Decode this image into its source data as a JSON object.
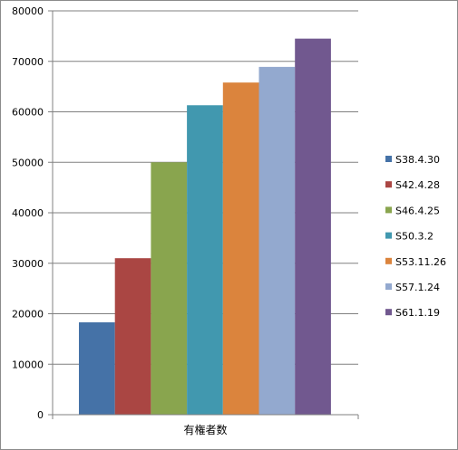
{
  "chart_data": {
    "type": "bar",
    "categories": [
      "有権者数"
    ],
    "series": [
      {
        "name": "S38.4.30",
        "values": [
          18300
        ],
        "color": "#4572A7"
      },
      {
        "name": "S42.4.28",
        "values": [
          31000
        ],
        "color": "#AA4643"
      },
      {
        "name": "S46.4.25",
        "values": [
          50000
        ],
        "color": "#89A54E"
      },
      {
        "name": "S50.3.2",
        "values": [
          61300
        ],
        "color": "#4198AF"
      },
      {
        "name": "S53.11.26",
        "values": [
          65800
        ],
        "color": "#DB843D"
      },
      {
        "name": "S57.1.24",
        "values": [
          68900
        ],
        "color": "#93A9CF"
      },
      {
        "name": "S61.1.19",
        "values": [
          74500
        ],
        "color": "#71588F"
      }
    ],
    "ylim": [
      0,
      80000
    ],
    "yticks": [
      "0",
      "10000",
      "20000",
      "30000",
      "40000",
      "50000",
      "60000",
      "70000",
      "80000"
    ],
    "grid": true,
    "legend_position": "right"
  }
}
